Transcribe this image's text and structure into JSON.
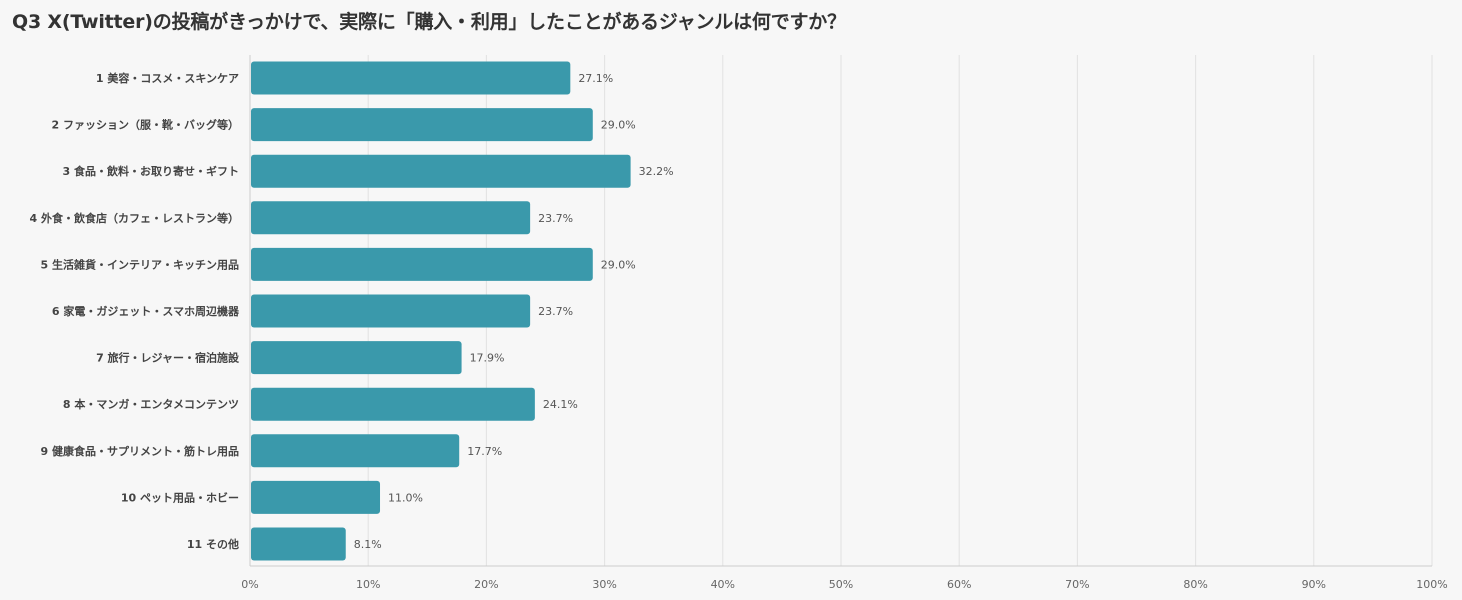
{
  "title": "Q3 X(Twitter)の投稿がきっかけで、実際に「購入・利用」したことがあるジャンルは何ですか？",
  "chart_data": {
    "type": "bar",
    "orientation": "horizontal",
    "title": "Q3 X(Twitter)の投稿がきっかけで、実際に「購入・利用」したことがあるジャンルは何ですか？",
    "xlabel": "",
    "ylabel": "",
    "xlim": [
      0,
      100
    ],
    "grid": true,
    "legend": "none",
    "bar_color": "#3a99ab",
    "categories": [
      "1 美容・コスメ・スキンケア",
      "2 ファッション（服・靴・バッグ等）",
      "3 食品・飲料・お取り寄せ・ギフト",
      "4 外食・飲食店（カフェ・レストラン等）",
      "5 生活雑貨・インテリア・キッチン用品",
      "6 家電・ガジェット・スマホ周辺機器",
      "7 旅行・レジャー・宿泊施設",
      "8 本・マンガ・エンタメコンテンツ",
      "9 健康食品・サプリメント・筋トレ用品",
      "10 ペット用品・ホビー",
      "11 その他"
    ],
    "values": [
      27.1,
      29.0,
      32.2,
      23.7,
      29.0,
      23.7,
      17.9,
      24.1,
      17.7,
      11.0,
      8.1
    ],
    "value_labels": [
      "27.1%",
      "29.0%",
      "32.2%",
      "23.7%",
      "29.0%",
      "23.7%",
      "17.9%",
      "24.1%",
      "17.7%",
      "11.0%",
      "8.1%"
    ],
    "x_ticks": [
      0,
      10,
      20,
      30,
      40,
      50,
      60,
      70,
      80,
      90,
      100
    ],
    "x_tick_labels": [
      "0%",
      "10%",
      "20%",
      "30%",
      "40%",
      "50%",
      "60%",
      "70%",
      "80%",
      "90%",
      "100%"
    ]
  }
}
